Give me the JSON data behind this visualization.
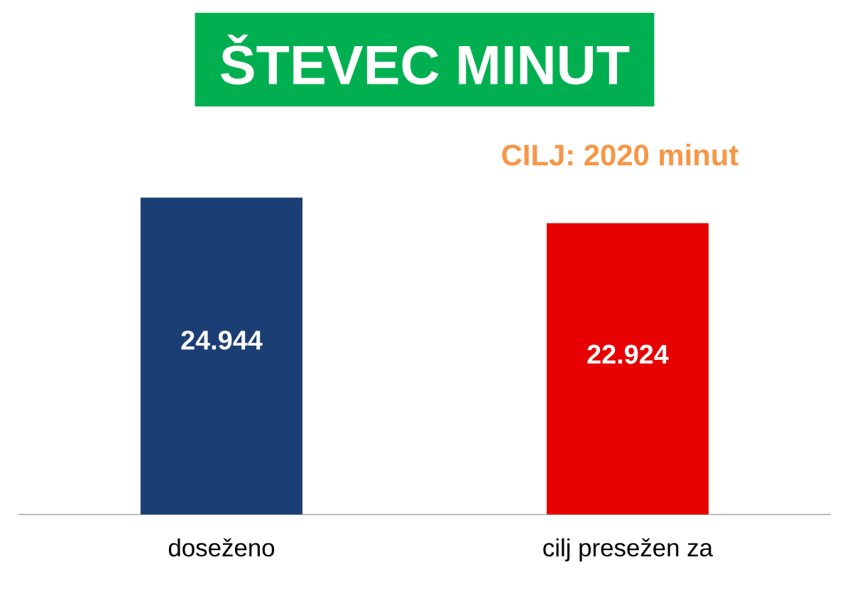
{
  "chart_data": {
    "type": "bar",
    "title": "ŠTEVEC MINUT",
    "annotations": [
      "CILJ: 2020 minut"
    ],
    "categories": [
      "doseženo",
      "cilj presežen za"
    ],
    "values": [
      24944,
      22924
    ],
    "colors": [
      "#1b3f74",
      "#e60000"
    ],
    "value_labels": [
      "24.944",
      "22.924"
    ]
  }
}
